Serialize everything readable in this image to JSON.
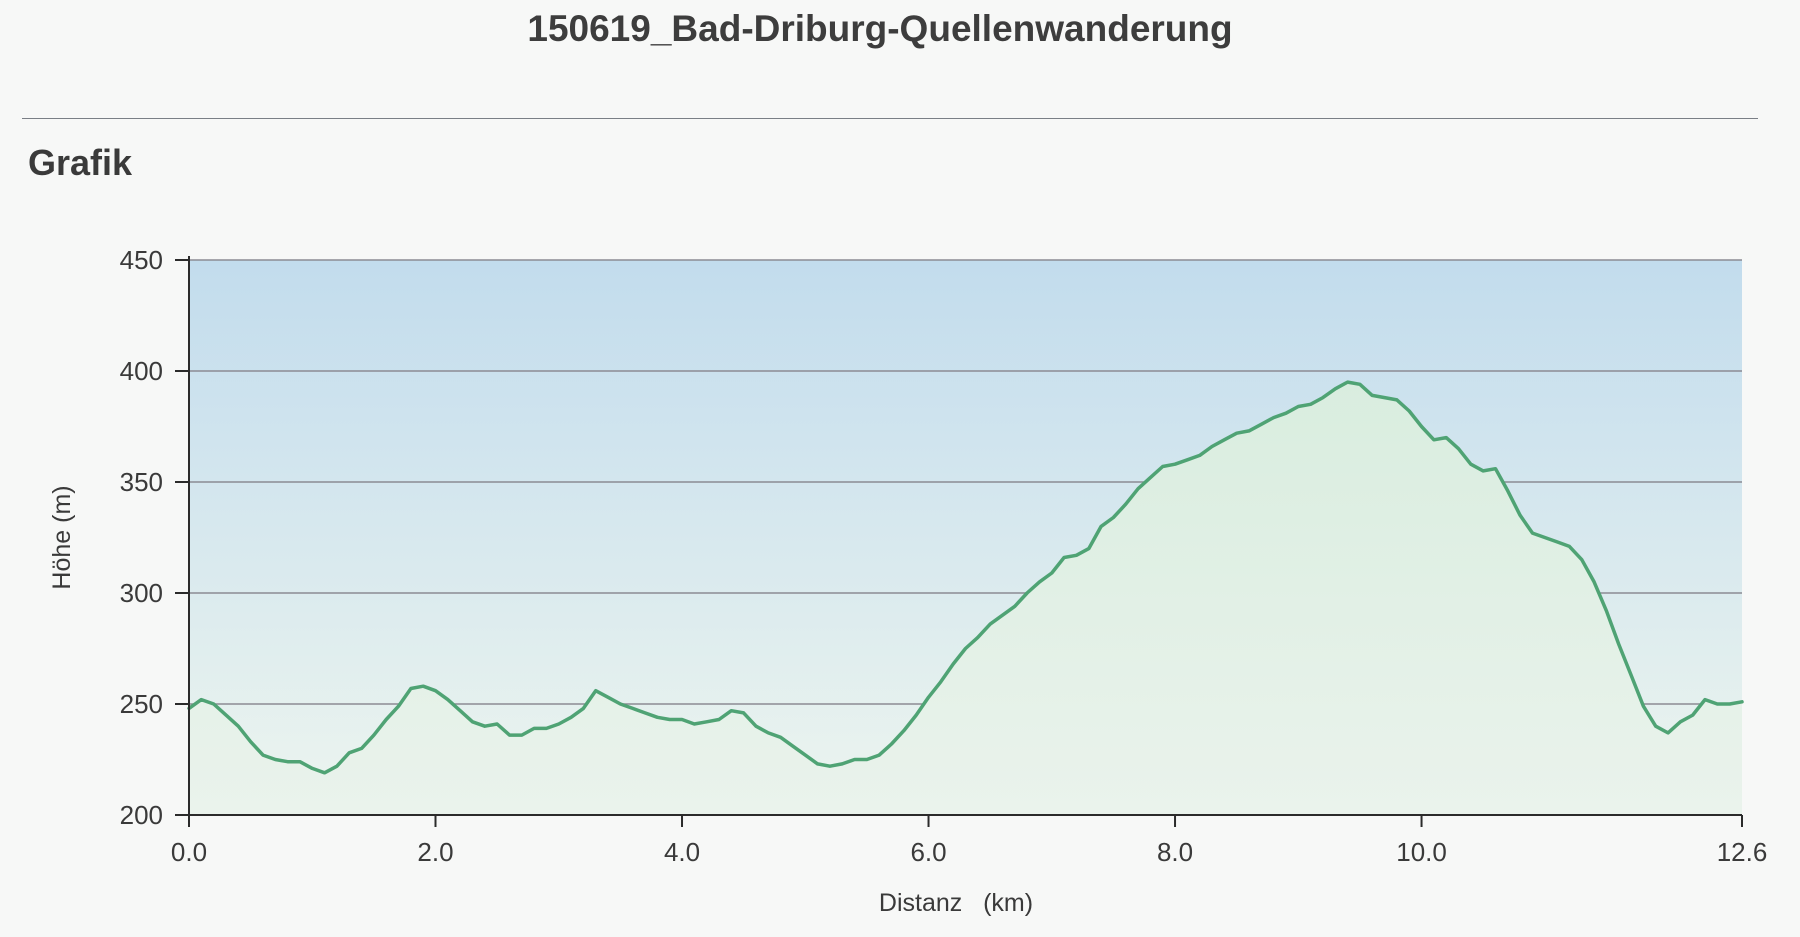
{
  "page": {
    "title": "150619_Bad-Driburg-Quellenwanderung",
    "section_heading": "Grafik"
  },
  "chart_data": {
    "type": "area",
    "title": "",
    "xlabel": "Distanz   (km)",
    "ylabel": "Höhe (m)",
    "xlim": [
      0,
      12.6
    ],
    "ylim": [
      200,
      450
    ],
    "x_ticks": [
      0,
      2,
      4,
      6,
      8,
      10,
      12.6
    ],
    "x_tick_labels": [
      "0.0",
      "2.0",
      "4.0",
      "6.0",
      "8.0",
      "10.0",
      "12.6"
    ],
    "y_ticks": [
      200,
      250,
      300,
      350,
      400,
      450
    ],
    "y_tick_labels": [
      "200",
      "250",
      "300",
      "350",
      "400",
      "450"
    ],
    "grid": true,
    "legend": "none",
    "colors": {
      "line": "#4fa374",
      "fill_top": "#d9eddf",
      "fill_bottom": "#eaf3ec",
      "bg_top": "#c2dced",
      "bg_bottom": "#edf5ef",
      "grid": "#8b8b94"
    },
    "series": [
      {
        "x": [
          0.0,
          0.1,
          0.2,
          0.3,
          0.4,
          0.5,
          0.6,
          0.7,
          0.8,
          0.9,
          1.0,
          1.1,
          1.2,
          1.3,
          1.4,
          1.5,
          1.6,
          1.7,
          1.8,
          1.9,
          2.0,
          2.1,
          2.2,
          2.3,
          2.4,
          2.5,
          2.6,
          2.7,
          2.8,
          2.9,
          3.0,
          3.1,
          3.2,
          3.3,
          3.4,
          3.5,
          3.6,
          3.7,
          3.8,
          3.9,
          4.0,
          4.1,
          4.2,
          4.3,
          4.4,
          4.5,
          4.6,
          4.7,
          4.8,
          4.9,
          5.0,
          5.1,
          5.2,
          5.3,
          5.4,
          5.5,
          5.6,
          5.7,
          5.8,
          5.9,
          6.0,
          6.1,
          6.2,
          6.3,
          6.4,
          6.5,
          6.6,
          6.7,
          6.8,
          6.9,
          7.0,
          7.1,
          7.2,
          7.3,
          7.4,
          7.5,
          7.6,
          7.7,
          7.8,
          7.9,
          8.0,
          8.1,
          8.2,
          8.3,
          8.4,
          8.5,
          8.6,
          8.7,
          8.8,
          8.9,
          9.0,
          9.1,
          9.2,
          9.3,
          9.4,
          9.5,
          9.6,
          9.7,
          9.8,
          9.9,
          10.0,
          10.1,
          10.2,
          10.3,
          10.4,
          10.5,
          10.6,
          10.7,
          10.8,
          10.9,
          11.0,
          11.1,
          11.2,
          11.3,
          11.4,
          11.5,
          11.6,
          11.7,
          11.8,
          11.9,
          12.0,
          12.1,
          12.2,
          12.3,
          12.4,
          12.5,
          12.6
        ],
        "values": [
          248,
          252,
          250,
          245,
          240,
          233,
          227,
          225,
          224,
          224,
          221,
          219,
          222,
          228,
          230,
          236,
          243,
          249,
          257,
          258,
          256,
          252,
          247,
          242,
          240,
          241,
          236,
          236,
          239,
          239,
          241,
          244,
          248,
          256,
          253,
          250,
          248,
          246,
          244,
          243,
          243,
          241,
          242,
          243,
          247,
          246,
          240,
          237,
          235,
          231,
          227,
          223,
          222,
          223,
          225,
          225,
          227,
          232,
          238,
          245,
          253,
          260,
          268,
          275,
          280,
          286,
          290,
          294,
          300,
          305,
          309,
          316,
          317,
          320,
          330,
          334,
          340,
          347,
          352,
          357,
          358,
          360,
          362,
          366,
          369,
          372,
          373,
          376,
          379,
          381,
          384,
          385,
          388,
          392,
          395,
          394,
          389,
          388,
          387,
          382,
          375,
          369,
          370,
          365,
          358,
          355,
          356,
          346,
          335,
          327,
          325,
          323,
          321,
          315,
          305,
          292,
          277,
          263,
          249,
          240,
          237,
          242,
          245,
          252,
          250,
          250,
          251
        ]
      }
    ]
  }
}
